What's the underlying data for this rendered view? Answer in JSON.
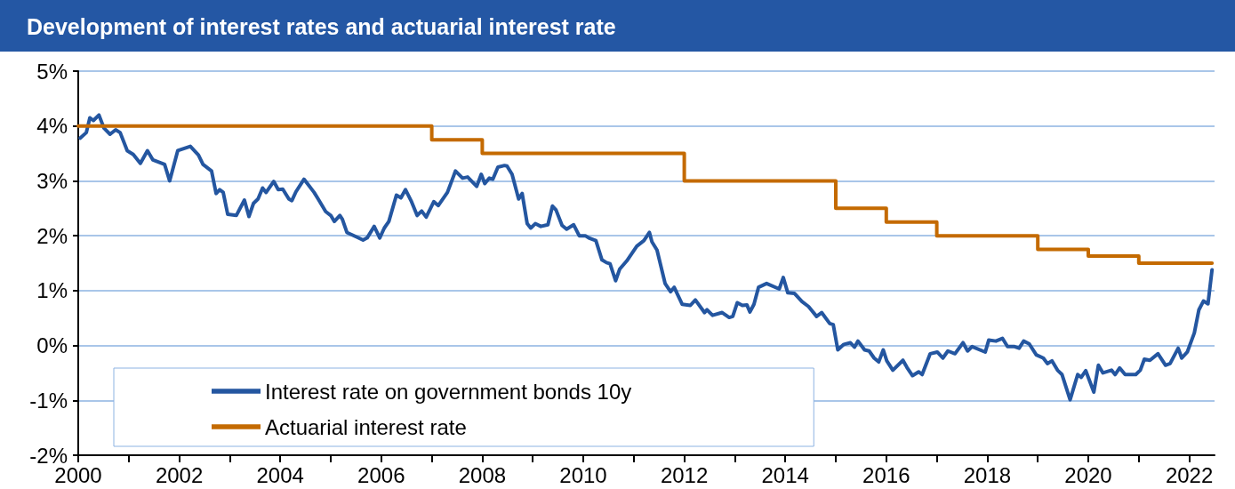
{
  "chart_data": {
    "type": "line",
    "title": "Development of interest rates and actuarial interest rate",
    "xlim": [
      2000,
      2022.5
    ],
    "xticks": [
      2000,
      {
        "value": 2001,
        "label": null
      },
      2002,
      {
        "value": 2003,
        "label": null
      },
      2004,
      {
        "value": 2005,
        "label": null
      },
      2006,
      {
        "value": 2007,
        "label": null
      },
      2008,
      {
        "value": 2009,
        "label": null
      },
      2010,
      {
        "value": 2011,
        "label": null
      },
      2012,
      {
        "value": 2013,
        "label": null
      },
      2014,
      {
        "value": 2015,
        "label": null
      },
      2016,
      {
        "value": 2017,
        "label": null
      },
      2018,
      {
        "value": 2019,
        "label": null
      },
      2020,
      {
        "value": 2021,
        "label": null
      },
      2022
    ],
    "ylim": [
      -2,
      5
    ],
    "yticks": [
      {
        "value": -2,
        "label": "-2%"
      },
      {
        "value": -1,
        "label": "-1%"
      },
      {
        "value": 0,
        "label": "0%"
      },
      {
        "value": 1,
        "label": "1%"
      },
      {
        "value": 2,
        "label": "2%"
      },
      {
        "value": 3,
        "label": "3%"
      },
      {
        "value": 4,
        "label": "4%"
      },
      {
        "value": 5,
        "label": "5%"
      }
    ],
    "grid": "y",
    "legend": "bottom left",
    "marker": "none",
    "line_style": "solid",
    "series": [
      {
        "name": "Interest rate on government bonds 10y",
        "color": "#2456a0",
        "type": "line",
        "x": [
          2000.04,
          2000.16,
          2000.23,
          2000.3,
          2000.41,
          2000.51,
          2000.63,
          2000.74,
          2000.83,
          2000.97,
          2001.09,
          2001.23,
          2001.37,
          2001.48,
          2001.71,
          2001.81,
          2001.97,
          2002.22,
          2002.38,
          2002.47,
          2002.64,
          2002.73,
          2002.8,
          2002.87,
          2002.96,
          2003.13,
          2003.29,
          2003.38,
          2003.47,
          2003.56,
          2003.65,
          2003.72,
          2003.87,
          2003.96,
          2004.05,
          2004.17,
          2004.23,
          2004.31,
          2004.47,
          2004.67,
          2004.75,
          2004.9,
          2005.0,
          2005.07,
          2005.18,
          2005.23,
          2005.32,
          2005.53,
          2005.64,
          2005.72,
          2005.86,
          2005.97,
          2006.06,
          2006.15,
          2006.3,
          2006.39,
          2006.48,
          2006.6,
          2006.71,
          2006.8,
          2006.89,
          2007.04,
          2007.13,
          2007.31,
          2007.47,
          2007.61,
          2007.71,
          2007.89,
          2007.98,
          2008.05,
          2008.14,
          2008.21,
          2008.31,
          2008.44,
          2008.49,
          2008.59,
          2008.72,
          2008.79,
          2008.89,
          2008.96,
          2009.05,
          2009.16,
          2009.3,
          2009.39,
          2009.46,
          2009.58,
          2009.67,
          2009.81,
          2009.92,
          2010.04,
          2010.11,
          2010.25,
          2010.37,
          2010.46,
          2010.53,
          2010.64,
          2010.72,
          2010.86,
          2011.06,
          2011.2,
          2011.31,
          2011.36,
          2011.46,
          2011.62,
          2011.73,
          2011.8,
          2011.96,
          2012.12,
          2012.22,
          2012.4,
          2012.45,
          2012.56,
          2012.75,
          2012.89,
          2012.96,
          2013.05,
          2013.15,
          2013.24,
          2013.3,
          2013.38,
          2013.47,
          2013.63,
          2013.88,
          2013.96,
          2014.05,
          2014.18,
          2014.33,
          2014.46,
          2014.62,
          2014.72,
          2014.88,
          2014.95,
          2015.04,
          2015.16,
          2015.29,
          2015.37,
          2015.44,
          2015.57,
          2015.66,
          2015.76,
          2015.85,
          2015.94,
          2016.01,
          2016.13,
          2016.33,
          2016.41,
          2016.52,
          2016.64,
          2016.71,
          2016.87,
          2017.01,
          2017.12,
          2017.22,
          2017.36,
          2017.52,
          2017.61,
          2017.7,
          2017.96,
          2018.03,
          2018.17,
          2018.3,
          2018.4,
          2018.54,
          2018.63,
          2018.72,
          2018.83,
          2018.97,
          2019.11,
          2019.19,
          2019.28,
          2019.39,
          2019.48,
          2019.64,
          2019.79,
          2019.86,
          2019.95,
          2020.11,
          2020.2,
          2020.29,
          2020.46,
          2020.53,
          2020.62,
          2020.73,
          2020.94,
          2021.03,
          2021.11,
          2021.22,
          2021.38,
          2021.53,
          2021.62,
          2021.78,
          2021.85,
          2021.96,
          2022.1,
          2022.19,
          2022.28,
          2022.37,
          2022.45
        ],
        "values": [
          3.78,
          3.88,
          4.15,
          4.1,
          4.2,
          3.96,
          3.85,
          3.93,
          3.88,
          3.55,
          3.48,
          3.32,
          3.55,
          3.38,
          3.3,
          3.0,
          3.55,
          3.63,
          3.47,
          3.3,
          3.18,
          2.77,
          2.84,
          2.79,
          2.39,
          2.37,
          2.65,
          2.35,
          2.59,
          2.67,
          2.87,
          2.79,
          2.99,
          2.84,
          2.85,
          2.67,
          2.64,
          2.8,
          3.03,
          2.79,
          2.67,
          2.44,
          2.37,
          2.26,
          2.37,
          2.3,
          2.06,
          1.97,
          1.92,
          1.96,
          2.17,
          1.96,
          2.14,
          2.26,
          2.74,
          2.69,
          2.84,
          2.62,
          2.37,
          2.45,
          2.34,
          2.62,
          2.55,
          2.79,
          3.18,
          3.05,
          3.07,
          2.9,
          3.12,
          2.95,
          3.05,
          3.03,
          3.25,
          3.28,
          3.27,
          3.12,
          2.67,
          2.77,
          2.22,
          2.14,
          2.22,
          2.17,
          2.2,
          2.54,
          2.47,
          2.19,
          2.12,
          2.2,
          2.0,
          2.0,
          1.96,
          1.91,
          1.56,
          1.51,
          1.49,
          1.18,
          1.39,
          1.54,
          1.81,
          1.91,
          2.06,
          1.89,
          1.74,
          1.13,
          0.98,
          1.06,
          0.75,
          0.73,
          0.83,
          0.6,
          0.65,
          0.55,
          0.6,
          0.51,
          0.53,
          0.78,
          0.73,
          0.74,
          0.61,
          0.75,
          1.06,
          1.13,
          1.03,
          1.24,
          0.96,
          0.95,
          0.8,
          0.71,
          0.53,
          0.6,
          0.4,
          0.38,
          -0.08,
          0.02,
          0.05,
          -0.03,
          0.08,
          -0.08,
          -0.1,
          -0.23,
          -0.3,
          -0.08,
          -0.28,
          -0.45,
          -0.27,
          -0.4,
          -0.55,
          -0.48,
          -0.53,
          -0.15,
          -0.12,
          -0.23,
          -0.1,
          -0.15,
          0.05,
          -0.1,
          -0.02,
          -0.12,
          0.1,
          0.08,
          0.13,
          -0.02,
          -0.02,
          -0.05,
          0.08,
          0.03,
          -0.17,
          -0.23,
          -0.33,
          -0.28,
          -0.45,
          -0.53,
          -0.99,
          -0.53,
          -0.58,
          -0.46,
          -0.85,
          -0.36,
          -0.5,
          -0.45,
          -0.53,
          -0.41,
          -0.53,
          -0.53,
          -0.45,
          -0.25,
          -0.27,
          -0.15,
          -0.36,
          -0.33,
          -0.05,
          -0.23,
          -0.12,
          0.23,
          0.65,
          0.81,
          0.76,
          1.38
        ]
      },
      {
        "name": "Actuarial interest rate",
        "color": "#c46a00",
        "type": "step",
        "x": [
          2000,
          2007,
          2008,
          2012,
          2015,
          2016,
          2017,
          2019,
          2020,
          2021,
          2022.45
        ],
        "values": [
          4,
          3.75,
          3.5,
          3,
          2.5,
          2.25,
          2,
          1.75,
          1.63,
          1.5,
          1.5
        ]
      }
    ]
  }
}
